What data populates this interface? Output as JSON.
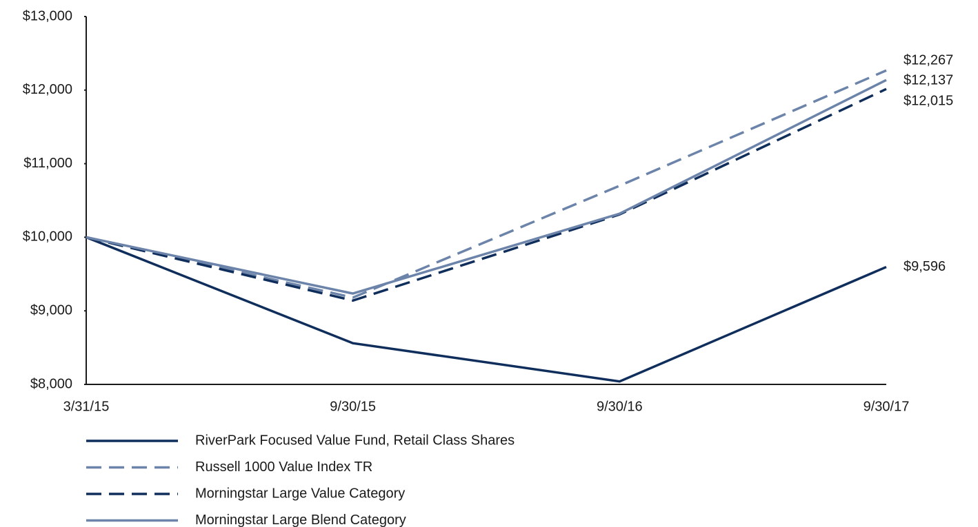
{
  "chart_data": {
    "type": "line",
    "categories": [
      "3/31/15",
      "9/30/15",
      "9/30/16",
      "9/30/17"
    ],
    "ylim": [
      8000,
      13000
    ],
    "yticks": [
      {
        "value": 8000,
        "label": "$8,000"
      },
      {
        "value": 9000,
        "label": "$9,000"
      },
      {
        "value": 10000,
        "label": "$10,000"
      },
      {
        "value": 11000,
        "label": "$11,000"
      },
      {
        "value": 12000,
        "label": "$12,000"
      },
      {
        "value": 13000,
        "label": "$13,000"
      }
    ],
    "legend": "bottom",
    "series": [
      {
        "name": "RiverPark Focused Value Fund, Retail Class Shares",
        "color": "#0f2e5c",
        "style": "solid",
        "values": [
          10000,
          8560,
          8040,
          9596
        ],
        "value_labels": [
          null,
          null,
          null,
          "$9,596"
        ]
      },
      {
        "name": "Russell 1000 Value Index TR",
        "color": "#6c84aa",
        "style": "dashed",
        "values": [
          10000,
          9180,
          10700,
          12267
        ],
        "value_labels": [
          null,
          null,
          null,
          "$12,267"
        ]
      },
      {
        "name": "Morningstar Large Value Category",
        "color": "#0f2e5c",
        "style": "dashed",
        "values": [
          10000,
          9140,
          10310,
          12015
        ],
        "value_labels": [
          null,
          null,
          null,
          "$12,015"
        ]
      },
      {
        "name": "Morningstar Large Blend Category",
        "color": "#6c84aa",
        "style": "solid",
        "values": [
          10000,
          9235,
          10320,
          12137
        ],
        "value_labels": [
          null,
          null,
          null,
          "$12,137"
        ]
      }
    ]
  }
}
